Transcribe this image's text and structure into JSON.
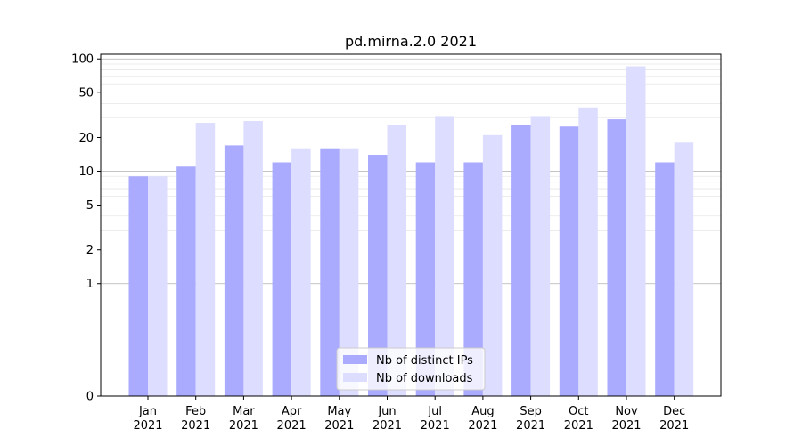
{
  "chart_data": {
    "type": "bar",
    "title": "pd.mirna.2.0 2021",
    "xlabel": "",
    "ylabel": "",
    "yscale": "symlog",
    "ylim": [
      0,
      110
    ],
    "yticks": [
      0,
      1,
      2,
      5,
      10,
      20,
      50,
      100
    ],
    "ytick_labels": [
      "0",
      "1",
      "2",
      "5",
      "10",
      "20",
      "50",
      "100"
    ],
    "categories": [
      [
        "Jan",
        "2021"
      ],
      [
        "Feb",
        "2021"
      ],
      [
        "Mar",
        "2021"
      ],
      [
        "Apr",
        "2021"
      ],
      [
        "May",
        "2021"
      ],
      [
        "Jun",
        "2021"
      ],
      [
        "Jul",
        "2021"
      ],
      [
        "Aug",
        "2021"
      ],
      [
        "Sep",
        "2021"
      ],
      [
        "Oct",
        "2021"
      ],
      [
        "Nov",
        "2021"
      ],
      [
        "Dec",
        "2021"
      ]
    ],
    "series": [
      {
        "name": "Nb of distinct IPs",
        "color": "#aaaaff",
        "values": [
          9,
          11,
          17,
          12,
          16,
          14,
          12,
          12,
          26,
          25,
          29,
          12
        ]
      },
      {
        "name": "Nb of downloads",
        "color": "#ddddff",
        "values": [
          9,
          27,
          28,
          16,
          16,
          26,
          31,
          21,
          31,
          37,
          86,
          18
        ]
      }
    ],
    "grid": true,
    "legend_position": "bottom-center"
  }
}
